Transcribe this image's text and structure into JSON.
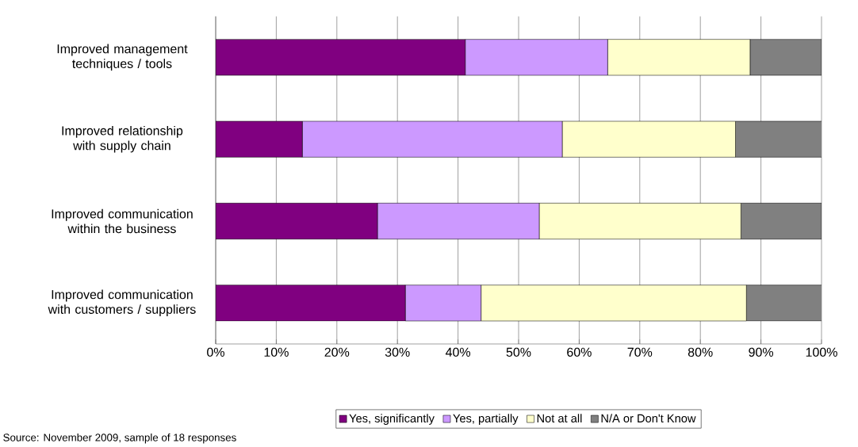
{
  "chart_data": {
    "type": "bar",
    "orientation": "horizontal",
    "stacked": true,
    "categories": [
      "Improved management techniques / tools",
      "Improved relationship with supply chain",
      "Improved communication within the business",
      "Improved communication with customers / suppliers"
    ],
    "series": [
      {
        "name": "Yes, significantly",
        "color": "#800080",
        "values": [
          41.2,
          14.3,
          26.7,
          31.3
        ]
      },
      {
        "name": "Yes, partially",
        "color": "#cc99ff",
        "values": [
          23.5,
          42.9,
          26.7,
          12.5
        ]
      },
      {
        "name": "Not at all",
        "color": "#ffffcc",
        "values": [
          23.5,
          28.6,
          33.3,
          43.8
        ]
      },
      {
        "name": "N/A or Don't Know",
        "color": "#808080",
        "values": [
          11.8,
          14.3,
          13.3,
          12.5
        ]
      }
    ],
    "xlim": [
      0,
      100
    ],
    "xticks": [
      {
        "value": 0,
        "label": "0%"
      },
      {
        "value": 10,
        "label": "10%"
      },
      {
        "value": 20,
        "label": "20%"
      },
      {
        "value": 30,
        "label": "30%"
      },
      {
        "value": 40,
        "label": "40%"
      },
      {
        "value": 50,
        "label": "50%"
      },
      {
        "value": 60,
        "label": "60%"
      },
      {
        "value": 70,
        "label": "70%"
      },
      {
        "value": 80,
        "label": "80%"
      },
      {
        "value": 90,
        "label": "90%"
      },
      {
        "value": 100,
        "label": "100%"
      }
    ],
    "grid": "x",
    "legend": "bottom",
    "annotations": [
      "Source: November 2009, sample of 18 responses"
    ]
  }
}
